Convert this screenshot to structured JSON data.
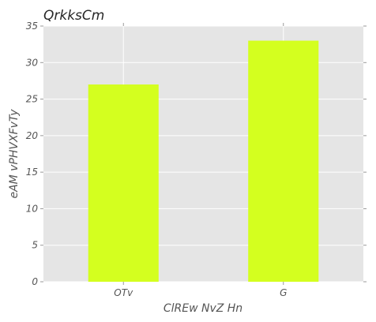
{
  "chart_data": {
    "type": "bar",
    "title": "QrkksCm",
    "xlabel": "ClREw NvZ Hn",
    "ylabel": "eAM vPHVXFvTy",
    "categories": [
      "OTv",
      "G"
    ],
    "values": [
      27,
      33
    ],
    "ylim": [
      0,
      35
    ],
    "yticks": [
      0,
      5,
      10,
      15,
      20,
      25,
      30,
      35
    ],
    "grid": true,
    "legend": "none",
    "bar_color": "#d4ff1f",
    "plot_background": "#e5e5e5",
    "grid_color": "#ffffff"
  }
}
